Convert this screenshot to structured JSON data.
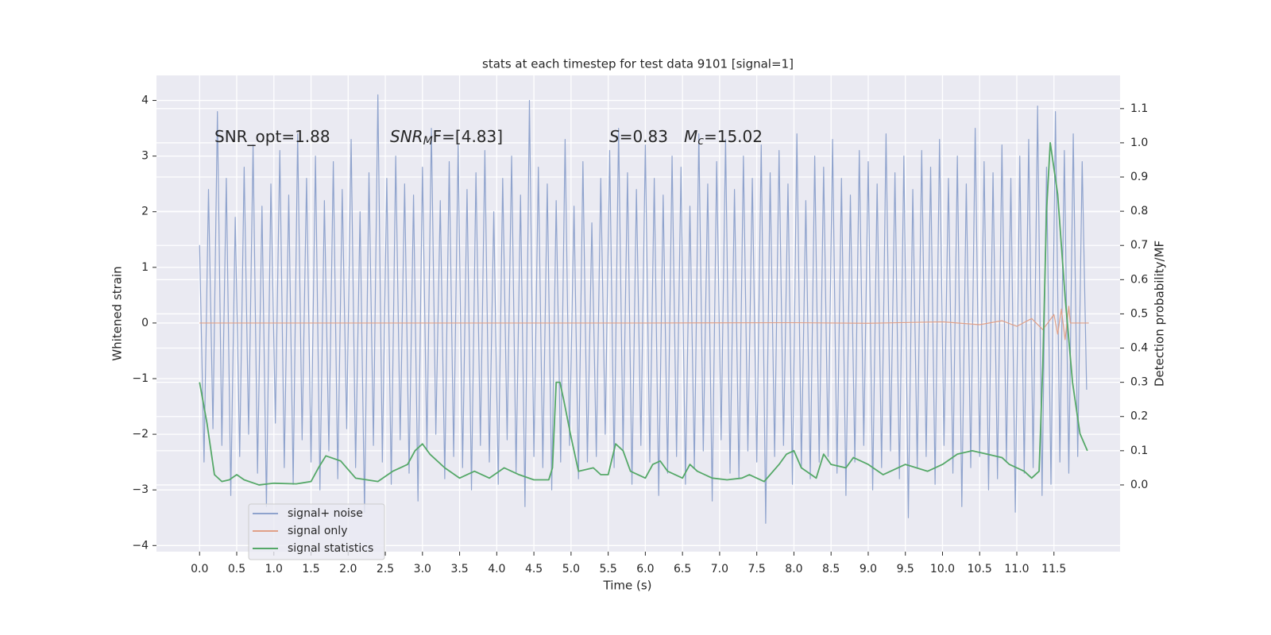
{
  "chart_data": {
    "type": "line",
    "title": "stats at each timestep for test data 9101 [signal=1]",
    "xlabel": "Time (s)",
    "ylabel": "Whitened strain",
    "y2label": "Detection probability/MF",
    "annotations": [
      [
        "SNR_opt=1.88"
      ],
      [
        "SNR",
        "M",
        "F=[4.83]"
      ],
      [
        "S",
        "=0.83",
        "M",
        "c",
        "=15.02"
      ]
    ],
    "xlim": [
      -0.58,
      12.39
    ],
    "ylim": [
      -4.11,
      4.45
    ],
    "y2lim": [
      -0.195,
      1.197
    ],
    "xticks": [
      {
        "value": 0,
        "label": "0.0"
      },
      0.5,
      {
        "value": 1,
        "label": "1.0"
      },
      1.5,
      {
        "value": 2,
        "label": "2.0"
      },
      2.5,
      {
        "value": 3,
        "label": "3.0"
      },
      3.5,
      {
        "value": 4,
        "label": "4.0"
      },
      4.5,
      {
        "value": 5,
        "label": "5.0"
      },
      5.5,
      {
        "value": 6,
        "label": "6.0"
      },
      6.5,
      {
        "value": 7,
        "label": "7.0"
      },
      7.5,
      {
        "value": 8,
        "label": "8.0"
      },
      8.5,
      {
        "value": 9,
        "label": "9.0"
      },
      9.5,
      {
        "value": 10,
        "label": "10.0"
      },
      10.5,
      {
        "value": 11,
        "label": "11.0"
      },
      11.5
    ],
    "yticks": [
      {
        "value": -4,
        "label": "−4"
      },
      {
        "value": -3,
        "label": "−3"
      },
      {
        "value": -2,
        "label": "−2"
      },
      {
        "value": -1,
        "label": "−1"
      },
      0,
      1,
      2,
      3,
      4
    ],
    "y2ticks": [
      {
        "value": 0,
        "label": "0.0"
      },
      0.1,
      0.2,
      0.3,
      0.4,
      0.5,
      0.6,
      0.7,
      0.8,
      0.9,
      {
        "value": 1,
        "label": "1.0"
      },
      1.1
    ],
    "grid": true,
    "legend": "lower left",
    "series": [
      {
        "name": "signal+ noise",
        "color": "#8fa3cd",
        "x": [
          0,
          0.06,
          0.12,
          0.18,
          0.24,
          0.3,
          0.36,
          0.42,
          0.48,
          0.54,
          0.6,
          0.66,
          0.72,
          0.78,
          0.84,
          0.9,
          0.96,
          1.02,
          1.08,
          1.14,
          1.2,
          1.26,
          1.32,
          1.38,
          1.44,
          1.5,
          1.56,
          1.62,
          1.68,
          1.74,
          1.8,
          1.86,
          1.92,
          1.98,
          2.04,
          2.1,
          2.16,
          2.22,
          2.28,
          2.34,
          2.4,
          2.46,
          2.52,
          2.58,
          2.64,
          2.7,
          2.76,
          2.82,
          2.88,
          2.94,
          3,
          3.06,
          3.12,
          3.18,
          3.24,
          3.3,
          3.36,
          3.42,
          3.48,
          3.54,
          3.6,
          3.66,
          3.72,
          3.78,
          3.84,
          3.9,
          3.96,
          4.02,
          4.08,
          4.14,
          4.2,
          4.26,
          4.32,
          4.38,
          4.44,
          4.5,
          4.56,
          4.62,
          4.68,
          4.74,
          4.8,
          4.86,
          4.92,
          4.98,
          5.04,
          5.1,
          5.16,
          5.22,
          5.28,
          5.34,
          5.4,
          5.46,
          5.52,
          5.58,
          5.64,
          5.7,
          5.76,
          5.82,
          5.88,
          5.94,
          6,
          6.06,
          6.12,
          6.18,
          6.24,
          6.3,
          6.36,
          6.42,
          6.48,
          6.54,
          6.6,
          6.66,
          6.72,
          6.78,
          6.84,
          6.9,
          6.96,
          7.02,
          7.08,
          7.14,
          7.2,
          7.26,
          7.32,
          7.38,
          7.44,
          7.5,
          7.56,
          7.62,
          7.68,
          7.74,
          7.8,
          7.86,
          7.92,
          7.98,
          8.04,
          8.1,
          8.16,
          8.22,
          8.28,
          8.34,
          8.4,
          8.46,
          8.52,
          8.58,
          8.64,
          8.7,
          8.76,
          8.82,
          8.88,
          8.94,
          9,
          9.06,
          9.12,
          9.18,
          9.24,
          9.3,
          9.36,
          9.42,
          9.48,
          9.54,
          9.6,
          9.66,
          9.72,
          9.78,
          9.84,
          9.9,
          9.96,
          10.02,
          10.08,
          10.14,
          10.2,
          10.26,
          10.32,
          10.38,
          10.44,
          10.5,
          10.56,
          10.62,
          10.68,
          10.74,
          10.8,
          10.86,
          10.92,
          10.98,
          11.04,
          11.1,
          11.16,
          11.22,
          11.28,
          11.34,
          11.4,
          11.46,
          11.52,
          11.58,
          11.64,
          11.7,
          11.76,
          11.82,
          11.88,
          11.94
        ],
        "values": [
          1.4,
          -2.5,
          2.4,
          -1.9,
          3.8,
          -2.2,
          2.6,
          -3.1,
          1.9,
          -2.4,
          2.8,
          -2.0,
          3.2,
          -2.7,
          2.1,
          -3.3,
          2.5,
          -1.8,
          3.1,
          -2.6,
          2.3,
          -2.9,
          3.4,
          -2.1,
          2.6,
          -2.5,
          3.0,
          -3.0,
          2.2,
          -2.3,
          2.9,
          -2.8,
          2.4,
          -1.9,
          3.3,
          -2.6,
          2.0,
          -3.4,
          2.7,
          -2.2,
          4.1,
          -2.5,
          2.6,
          -2.9,
          3.0,
          -2.1,
          2.5,
          -2.7,
          2.3,
          -3.2,
          2.8,
          -2.3,
          3.5,
          -2.0,
          2.2,
          -2.8,
          2.9,
          -2.4,
          3.2,
          -2.6,
          2.4,
          -3.0,
          2.7,
          -2.2,
          3.1,
          -2.5,
          2.0,
          -2.9,
          2.6,
          -2.1,
          3.0,
          -2.7,
          2.3,
          -3.3,
          4.0,
          -2.4,
          2.8,
          -2.6,
          2.5,
          -3.0,
          2.2,
          -2.5,
          3.3,
          -2.2,
          2.1,
          -2.8,
          2.9,
          -2.5,
          1.8,
          -2.4,
          2.6,
          -2.0,
          3.1,
          -2.6,
          3.5,
          -2.3,
          2.7,
          -2.9,
          2.4,
          -2.2,
          3.2,
          -2.5,
          2.6,
          -3.1,
          2.3,
          -2.7,
          3.0,
          -2.4,
          2.8,
          -2.9,
          2.1,
          -2.6,
          3.4,
          -2.3,
          2.5,
          -3.2,
          2.9,
          -2.1,
          3.3,
          -2.7,
          2.4,
          -2.8,
          3.0,
          -2.3,
          2.6,
          -2.5,
          3.2,
          -3.6,
          2.7,
          -2.4,
          3.1,
          -2.2,
          2.5,
          -2.9,
          3.4,
          -2.6,
          2.2,
          -2.8,
          3.0,
          -2.5,
          2.8,
          -2.4,
          3.3,
          -2.7,
          2.6,
          -3.1,
          2.3,
          -2.5,
          3.1,
          -2.2,
          2.9,
          -3.0,
          2.5,
          -2.6,
          3.4,
          -2.3,
          2.7,
          -2.8,
          3.0,
          -3.5,
          2.4,
          -2.6,
          3.1,
          -2.4,
          2.8,
          -2.9,
          3.3,
          -2.2,
          2.6,
          -2.7,
          3.0,
          -3.3,
          2.5,
          -2.6,
          3.5,
          -2.4,
          2.9,
          -3.0,
          2.7,
          -2.8,
          3.2,
          -2.5,
          2.6,
          -3.4,
          3.0,
          -2.7,
          3.3,
          -2.6,
          3.9,
          -3.1,
          2.8,
          -2.9,
          3.8,
          -2.5,
          3.1,
          -2.7,
          3.4,
          -2.4,
          2.9,
          -1.2
        ]
      },
      {
        "name": "signal only",
        "color": "#e0a088",
        "x": [
          0,
          2,
          4,
          6,
          8,
          9,
          10,
          10.5,
          10.8,
          11,
          11.2,
          11.35,
          11.5,
          11.55,
          11.6,
          11.65,
          11.7,
          11.72,
          11.97
        ],
        "values": [
          0,
          0,
          0,
          0,
          0.005,
          -0.005,
          0.02,
          -0.03,
          0.04,
          -0.06,
          0.08,
          -0.12,
          0.15,
          -0.2,
          0.25,
          -0.3,
          0.3,
          0,
          0
        ]
      },
      {
        "name": "signal statistics",
        "color": "#55a868",
        "axis": "y2",
        "x": [
          0,
          0.1,
          0.2,
          0.3,
          0.4,
          0.5,
          0.6,
          0.8,
          1,
          1.3,
          1.5,
          1.6,
          1.7,
          1.9,
          2.1,
          2.4,
          2.6,
          2.8,
          2.9,
          3,
          3.1,
          3.3,
          3.5,
          3.7,
          3.9,
          4.1,
          4.3,
          4.5,
          4.7,
          4.75,
          4.8,
          4.85,
          4.9,
          5,
          5.1,
          5.3,
          5.4,
          5.5,
          5.6,
          5.7,
          5.8,
          6,
          6.1,
          6.2,
          6.3,
          6.5,
          6.6,
          6.7,
          6.9,
          7.1,
          7.3,
          7.4,
          7.6,
          7.8,
          7.9,
          8,
          8.1,
          8.3,
          8.4,
          8.5,
          8.7,
          8.8,
          9,
          9.2,
          9.5,
          9.8,
          10,
          10.2,
          10.4,
          10.6,
          10.8,
          10.9,
          11.1,
          11.2,
          11.3,
          11.35,
          11.4,
          11.45,
          11.55,
          11.65,
          11.75,
          11.85,
          11.95
        ],
        "values": [
          0.3,
          0.18,
          0.03,
          0.01,
          0.015,
          0.03,
          0.015,
          0,
          0.005,
          0.003,
          0.01,
          0.05,
          0.085,
          0.07,
          0.02,
          0.01,
          0.04,
          0.06,
          0.1,
          0.12,
          0.09,
          0.05,
          0.02,
          0.04,
          0.02,
          0.05,
          0.03,
          0.015,
          0.015,
          0.05,
          0.3,
          0.3,
          0.25,
          0.14,
          0.04,
          0.05,
          0.03,
          0.03,
          0.12,
          0.1,
          0.04,
          0.02,
          0.06,
          0.07,
          0.04,
          0.02,
          0.06,
          0.04,
          0.02,
          0.015,
          0.02,
          0.03,
          0.01,
          0.06,
          0.09,
          0.1,
          0.05,
          0.02,
          0.09,
          0.06,
          0.05,
          0.08,
          0.06,
          0.03,
          0.06,
          0.04,
          0.06,
          0.09,
          0.1,
          0.09,
          0.08,
          0.06,
          0.04,
          0.02,
          0.04,
          0.35,
          0.8,
          1,
          0.85,
          0.55,
          0.3,
          0.15,
          0.1
        ]
      }
    ]
  }
}
